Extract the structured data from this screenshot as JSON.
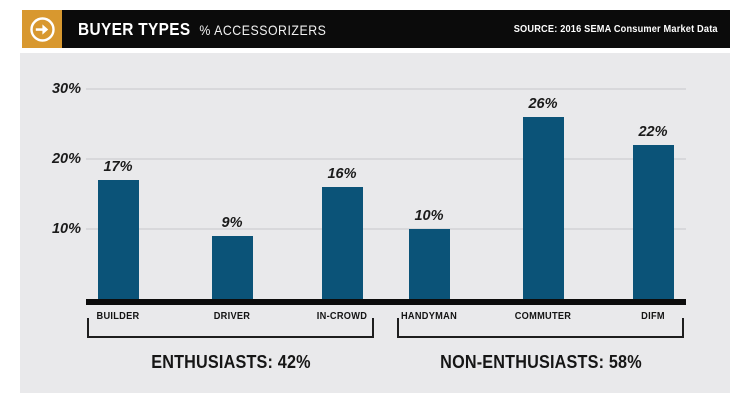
{
  "header": {
    "title": "BUYER TYPES",
    "subtitle": "% ACCESSORIZERS",
    "source": "SOURCE: 2016 SEMA Consumer Market Data",
    "icon": "arrow-right-icon"
  },
  "colors": {
    "accent_orange": "#D8982F",
    "bar_blue": "#0B5378",
    "panel_gray": "#E9E9EB",
    "header_black": "#0B0B0B",
    "gridline_gray": "#D8D8DB",
    "text_black": "#1B1B1B"
  },
  "chart_data": {
    "type": "bar",
    "title": "BUYER TYPES",
    "subtitle": "% ACCESSORIZERS",
    "source": "SOURCE: 2016 SEMA Consumer Market Data",
    "categories": [
      "BUILDER",
      "DRIVER",
      "IN-CROWD",
      "HANDYMAN",
      "COMMUTER",
      "DIFM"
    ],
    "values": [
      17,
      9,
      16,
      10,
      26,
      22
    ],
    "value_labels": [
      "17%",
      "9%",
      "16%",
      "10%",
      "26%",
      "22%"
    ],
    "yticks": [
      {
        "value": 10,
        "label": "10%"
      },
      {
        "value": 20,
        "label": "20%"
      },
      {
        "value": 30,
        "label": "30%"
      }
    ],
    "ylim": [
      0,
      33
    ],
    "grid": "horizontal",
    "legend": "none",
    "groups": [
      {
        "label": "ENTHUSIASTS: 42%",
        "share": 42,
        "categories": [
          "BUILDER",
          "DRIVER",
          "IN-CROWD"
        ]
      },
      {
        "label": "NON-ENTHUSIASTS: 58%",
        "share": 58,
        "categories": [
          "HANDYMAN",
          "COMMUTER",
          "DIFM"
        ]
      }
    ]
  }
}
